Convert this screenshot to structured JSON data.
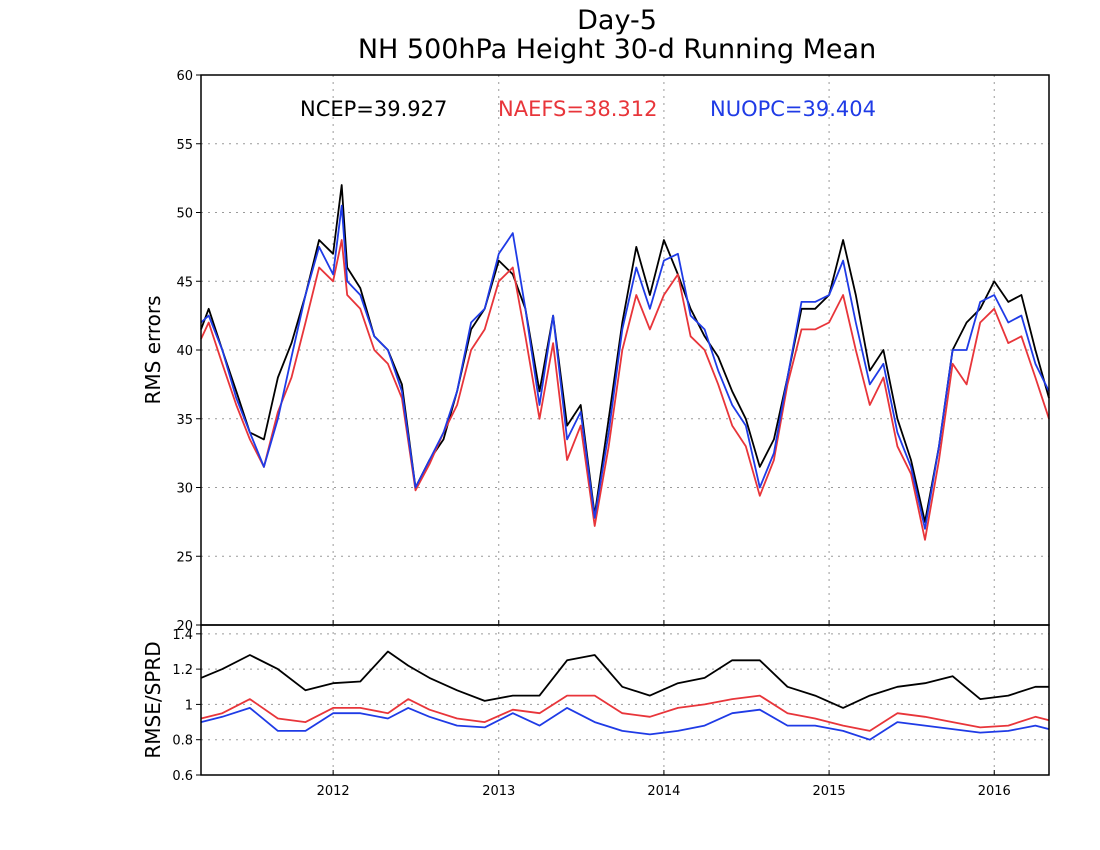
{
  "chart_data": [
    {
      "type": "line",
      "title": "Day-5",
      "subtitle": "NH 500hPa Height 30-d Running Mean",
      "xlabel": "",
      "ylabel": "RMS errors",
      "xlim": [
        "2011-03-15",
        "2016-05-01"
      ],
      "ylim": [
        20,
        60
      ],
      "yticks": [
        20,
        25,
        30,
        35,
        40,
        45,
        50,
        55,
        60
      ],
      "xticks": [
        "2012",
        "2013",
        "2014",
        "2015",
        "2016"
      ],
      "grid": true,
      "legend_placement": "top",
      "colors": {
        "NCEP": "#000000",
        "NAEFS": "#e8353a",
        "NUOPC": "#1f3be6"
      },
      "legend": [
        {
          "name": "NCEP",
          "label": "NCEP=39.927"
        },
        {
          "name": "NAEFS",
          "label": "NAEFS=38.312"
        },
        {
          "name": "NUOPC",
          "label": "NUOPC=39.404"
        }
      ],
      "x": [
        "2011-03-15",
        "2011-04-01",
        "2011-05-01",
        "2011-06-01",
        "2011-07-01",
        "2011-08-01",
        "2011-09-01",
        "2011-10-01",
        "2011-11-01",
        "2011-12-01",
        "2012-01-01",
        "2012-01-20",
        "2012-02-01",
        "2012-03-01",
        "2012-04-01",
        "2012-05-01",
        "2012-06-01",
        "2012-07-01",
        "2012-08-01",
        "2012-09-01",
        "2012-10-01",
        "2012-11-01",
        "2012-12-01",
        "2013-01-01",
        "2013-02-01",
        "2013-03-01",
        "2013-04-01",
        "2013-05-01",
        "2013-06-01",
        "2013-07-01",
        "2013-08-01",
        "2013-09-01",
        "2013-10-01",
        "2013-11-01",
        "2013-12-01",
        "2014-01-01",
        "2014-02-01",
        "2014-03-01",
        "2014-04-01",
        "2014-05-01",
        "2014-06-01",
        "2014-07-01",
        "2014-08-01",
        "2014-09-01",
        "2014-10-01",
        "2014-11-01",
        "2014-12-01",
        "2015-01-01",
        "2015-02-01",
        "2015-03-01",
        "2015-04-01",
        "2015-05-01",
        "2015-06-01",
        "2015-07-01",
        "2015-08-01",
        "2015-09-01",
        "2015-10-01",
        "2015-11-01",
        "2015-12-01",
        "2016-01-01",
        "2016-02-01",
        "2016-03-01",
        "2016-04-01",
        "2016-05-01"
      ],
      "series": [
        {
          "name": "NCEP",
          "values": [
            41.5,
            43,
            40,
            37,
            34,
            33.5,
            38,
            40.5,
            44,
            48,
            47,
            52,
            46,
            44.5,
            41,
            40,
            37.5,
            30,
            32,
            33.5,
            37,
            41.5,
            43,
            46.5,
            45.5,
            43,
            37,
            42.5,
            34.5,
            36,
            28,
            35,
            42,
            47.5,
            44,
            48,
            45.5,
            43,
            41,
            39.5,
            37,
            35,
            31.5,
            33.5,
            38,
            43,
            43,
            44,
            48,
            44,
            38.5,
            40,
            35,
            32,
            27.5,
            33,
            40,
            42,
            43,
            45,
            43.5,
            44,
            40,
            36.5
          ]
        },
        {
          "name": "NAEFS",
          "values": [
            40.8,
            42,
            39,
            36,
            33.5,
            31.5,
            35.5,
            38,
            42,
            46,
            45,
            48,
            44,
            43,
            40,
            39,
            36.5,
            29.8,
            31.7,
            34,
            36,
            40,
            41.5,
            45,
            46,
            41,
            35,
            40.5,
            32,
            34.5,
            27.2,
            33,
            40,
            44,
            41.5,
            44,
            45.5,
            41,
            40,
            37.5,
            34.5,
            33,
            29.4,
            32,
            37.5,
            41.5,
            41.5,
            42,
            44,
            40,
            36,
            38,
            33,
            31,
            26.2,
            32,
            39,
            37.5,
            42,
            43,
            40.5,
            41,
            38,
            35
          ]
        },
        {
          "name": "NUOPC",
          "values": [
            42,
            42.5,
            40,
            36.5,
            34,
            31.5,
            35,
            39.5,
            44,
            47.5,
            45.5,
            50.5,
            45,
            44,
            41,
            40,
            37,
            30,
            32,
            34,
            37,
            42,
            43,
            47,
            48.5,
            43,
            36,
            42.5,
            33.5,
            35.5,
            27.8,
            34,
            41.5,
            46,
            43,
            46.5,
            47,
            42.5,
            41.5,
            38.5,
            36,
            34.5,
            30,
            32.5,
            38,
            43.5,
            43.5,
            44,
            46.5,
            42,
            37.5,
            39,
            34,
            31.5,
            27,
            33,
            40,
            40,
            43.5,
            44,
            42,
            42.5,
            39,
            37
          ]
        }
      ]
    },
    {
      "type": "line",
      "title": "",
      "xlabel": "",
      "ylabel": "RMSE/SPRD",
      "xlim": [
        "2011-03-15",
        "2016-05-01"
      ],
      "ylim": [
        0.6,
        1.45
      ],
      "yticks": [
        0.6,
        0.8,
        1,
        1.2,
        1.4
      ],
      "yticklabels": [
        "0.6",
        "0.8",
        "1",
        "1.2",
        "1.4"
      ],
      "xticks": [
        "2012",
        "2013",
        "2014",
        "2015",
        "2016"
      ],
      "grid": true,
      "x": [
        "2011-03-15",
        "2011-05-01",
        "2011-07-01",
        "2011-09-01",
        "2011-11-01",
        "2012-01-01",
        "2012-03-01",
        "2012-05-01",
        "2012-06-15",
        "2012-08-01",
        "2012-10-01",
        "2012-12-01",
        "2013-02-01",
        "2013-04-01",
        "2013-06-01",
        "2013-08-01",
        "2013-10-01",
        "2013-12-01",
        "2014-02-01",
        "2014-04-01",
        "2014-06-01",
        "2014-08-01",
        "2014-10-01",
        "2014-12-01",
        "2015-02-01",
        "2015-04-01",
        "2015-06-01",
        "2015-08-01",
        "2015-10-01",
        "2015-12-01",
        "2016-02-01",
        "2016-04-01",
        "2016-05-01"
      ],
      "series": [
        {
          "name": "NCEP",
          "values": [
            1.15,
            1.2,
            1.28,
            1.2,
            1.08,
            1.12,
            1.13,
            1.3,
            1.22,
            1.15,
            1.08,
            1.02,
            1.05,
            1.05,
            1.25,
            1.28,
            1.1,
            1.05,
            1.12,
            1.15,
            1.25,
            1.25,
            1.1,
            1.05,
            0.98,
            1.05,
            1.1,
            1.12,
            1.16,
            1.03,
            1.05,
            1.1,
            1.1
          ]
        },
        {
          "name": "NAEFS",
          "values": [
            0.92,
            0.95,
            1.03,
            0.92,
            0.9,
            0.98,
            0.98,
            0.95,
            1.03,
            0.97,
            0.92,
            0.9,
            0.97,
            0.95,
            1.05,
            1.05,
            0.95,
            0.93,
            0.98,
            1.0,
            1.03,
            1.05,
            0.95,
            0.92,
            0.88,
            0.85,
            0.95,
            0.93,
            0.9,
            0.87,
            0.88,
            0.93,
            0.91
          ]
        },
        {
          "name": "NUOPC",
          "values": [
            0.9,
            0.93,
            0.98,
            0.85,
            0.85,
            0.95,
            0.95,
            0.92,
            0.98,
            0.93,
            0.88,
            0.87,
            0.95,
            0.88,
            0.98,
            0.9,
            0.85,
            0.83,
            0.85,
            0.88,
            0.95,
            0.97,
            0.88,
            0.88,
            0.85,
            0.8,
            0.9,
            0.88,
            0.86,
            0.84,
            0.85,
            0.88,
            0.86
          ]
        }
      ]
    }
  ]
}
